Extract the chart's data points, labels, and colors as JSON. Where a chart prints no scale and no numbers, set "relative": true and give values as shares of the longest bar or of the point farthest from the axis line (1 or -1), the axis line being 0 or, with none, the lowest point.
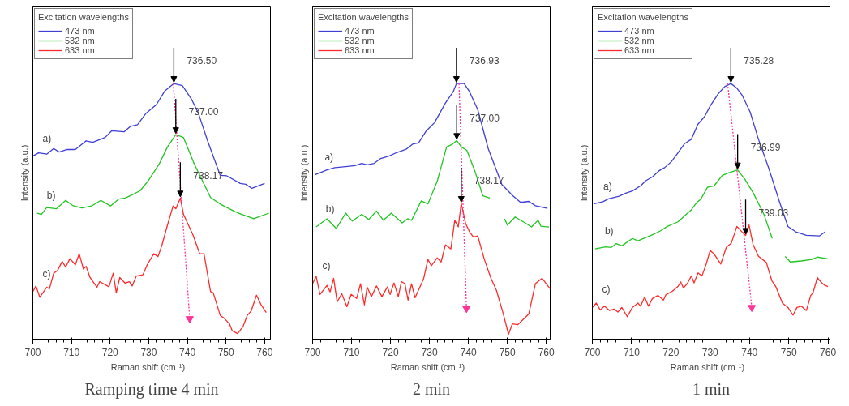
{
  "chart_data": [
    {
      "type": "line",
      "relative": true,
      "xlabel": "Raman shift    (cm⁻¹)",
      "ylabel": "Intensity (a.u.)",
      "legend_title": "Excitation wavelengths",
      "legend": "top left",
      "xlim": [
        700,
        761.5
      ],
      "xticks": [
        700,
        710,
        720,
        730,
        740,
        750,
        760
      ],
      "series": [
        {
          "name": "473 nm",
          "color": "#3f3fd6",
          "x": [
            700,
            701.5,
            703.6,
            705.4,
            706.8,
            708.9,
            711.0,
            713.8,
            715.5,
            718.7,
            720.4,
            723.6,
            725.3,
            727.1,
            729.2,
            732.0,
            734.1,
            736.5,
            738.7,
            741.1,
            742.9,
            745.3,
            748.5,
            750.2,
            753.7,
            755.1,
            756.7,
            760
          ],
          "values": [
            0.716,
            0.729,
            0.724,
            0.746,
            0.732,
            0.742,
            0.742,
            0.776,
            0.77,
            0.789,
            0.815,
            0.811,
            0.833,
            0.839,
            0.882,
            0.918,
            0.97,
            1.0,
            0.992,
            0.938,
            0.882,
            0.773,
            0.641,
            0.639,
            0.609,
            0.606,
            0.59,
            0.609
          ]
        },
        {
          "name": "532 nm",
          "color": "#22c422",
          "x": [
            701.1,
            702.2,
            703.6,
            706.1,
            708.5,
            710.3,
            712.7,
            715.2,
            717.6,
            720.1,
            722.2,
            723.9,
            725.7,
            727.8,
            729.9,
            732.7,
            734.8,
            737.0,
            739.0,
            741.8,
            746.0,
            748.8,
            752.3,
            754.1,
            757.2,
            761.1
          ],
          "values": [
            0.493,
            0.488,
            0.515,
            0.51,
            0.543,
            0.523,
            0.513,
            0.521,
            0.543,
            0.521,
            0.548,
            0.552,
            0.565,
            0.581,
            0.62,
            0.685,
            0.751,
            0.8,
            0.789,
            0.685,
            0.554,
            0.526,
            0.499,
            0.488,
            0.471,
            0.493
          ]
        },
        {
          "name": "633 nm",
          "color": "#ff2a2a",
          "x": [
            700,
            700.8,
            701.8,
            703.6,
            704.3,
            705.4,
            706.4,
            707.6,
            708.5,
            709.6,
            711.0,
            712.0,
            713.1,
            713.8,
            714.8,
            716.6,
            717.3,
            719.7,
            720.8,
            721.6,
            722.5,
            723.9,
            725.0,
            725.7,
            726.8,
            728.5,
            729.6,
            731.3,
            732.4,
            733.4,
            734.8,
            736.3,
            737.0,
            738.17,
            739.0,
            741.5,
            743.2,
            744.3,
            746.0,
            746.7,
            748.5,
            749.5,
            750.9,
            751.6,
            753.0,
            754.4,
            755.5,
            756.5,
            757.9,
            759.0,
            760.4
          ],
          "values": [
            0.186,
            0.208,
            0.164,
            0.203,
            0.197,
            0.258,
            0.269,
            0.304,
            0.282,
            0.315,
            0.291,
            0.334,
            0.274,
            0.285,
            0.241,
            0.203,
            0.225,
            0.205,
            0.258,
            0.181,
            0.241,
            0.219,
            0.225,
            0.208,
            0.247,
            0.252,
            0.291,
            0.334,
            0.323,
            0.367,
            0.444,
            0.521,
            0.51,
            0.552,
            0.488,
            0.406,
            0.334,
            0.334,
            0.186,
            0.181,
            0.093,
            0.082,
            0.06,
            0.033,
            0.022,
            0.049,
            0.093,
            0.11,
            0.172,
            0.137,
            0.104
          ]
        },
        {
          "type": "line",
          "color": "#ff3399",
          "line_style": "dotted",
          "x": [
            736.35,
            740.6
          ],
          "values": [
            1.0,
            0.08
          ]
        }
      ],
      "annotations": [
        {
          "text": "736.50",
          "x": 736.5,
          "y": 1.0
        },
        {
          "text": "737.00",
          "x": 737.0,
          "y": 0.8
        },
        {
          "text": "738.17",
          "x": 738.17,
          "y": 0.552
        },
        "a)",
        "b)",
        "c)",
        "Ramping time 4 min"
      ]
    },
    {
      "type": "line",
      "relative": true,
      "xlabel": "Raman shift    (cm⁻¹)",
      "ylabel": "Intensity (a.u.)",
      "legend_title": "Excitation wavelengths",
      "legend": "top left",
      "xlim": [
        700,
        761
      ],
      "xticks": [
        700,
        710,
        720,
        730,
        740,
        750,
        760
      ],
      "series": [
        {
          "name": "473 nm",
          "color": "#3f3fd6",
          "x": [
            700.6,
            703.7,
            705.7,
            708.5,
            710.9,
            712.6,
            714.0,
            715.8,
            717.5,
            719.6,
            721.6,
            724.0,
            725.8,
            727.2,
            729.2,
            731.3,
            734.1,
            736.1,
            736.93,
            738.9,
            740.3,
            742.4,
            745.1,
            748.6,
            751.4,
            753.4,
            755.5,
            757.2,
            760.3
          ],
          "values": [
            0.643,
            0.662,
            0.671,
            0.675,
            0.679,
            0.688,
            0.682,
            0.688,
            0.707,
            0.716,
            0.73,
            0.743,
            0.764,
            0.768,
            0.815,
            0.847,
            0.924,
            0.968,
            1.0,
            1.0,
            0.968,
            0.898,
            0.745,
            0.605,
            0.561,
            0.535,
            0.539,
            0.522,
            0.512
          ]
        },
        {
          "name": "532 nm",
          "color": "#22c422",
          "x": [
            700.9,
            703.7,
            706.1,
            708.5,
            710.2,
            712.6,
            714.4,
            716.4,
            718.2,
            720.2,
            723.0,
            724.4,
            725.4,
            727.9,
            729.6,
            732.0,
            734.4,
            736.0,
            737.0,
            738.2,
            739.6,
            741.7,
            743.7,
            745.5,
            747.4,
            749.3,
            750.0,
            752.0,
            754.1,
            756.2,
            757.9,
            758.6,
            760.7
          ],
          "values": [
            0.439,
            0.471,
            0.433,
            0.493,
            0.462,
            0.488,
            0.468,
            0.501,
            0.465,
            0.493,
            0.455,
            0.471,
            0.465,
            0.541,
            0.529,
            0.618,
            0.752,
            0.764,
            0.777,
            0.752,
            0.739,
            0.656,
            0.561,
            0.552,
            null,
            0.471,
            0.446,
            0.478,
            0.459,
            0.439,
            0.465,
            0.442,
            0.439
          ]
        },
        {
          "name": "633 nm",
          "color": "#ff2a2a",
          "x": [
            700,
            700.9,
            701.9,
            703.7,
            704.5,
            705.4,
            706.3,
            707.5,
            708.8,
            709.9,
            711.3,
            712.3,
            713.3,
            714.0,
            715.1,
            716.4,
            717.8,
            719.2,
            719.9,
            720.9,
            722.0,
            722.8,
            723.7,
            724.5,
            725.4,
            726.3,
            728.5,
            729.6,
            730.5,
            732.0,
            733.0,
            734.1,
            735.5,
            736.5,
            737.4,
            738.17,
            739.3,
            740.3,
            741.3,
            742.4,
            744.1,
            745.8,
            747.2,
            748.9,
            750.3,
            751.3,
            752.7,
            755.5,
            757.2,
            758.9,
            761.0
          ],
          "values": [
            0.217,
            0.246,
            0.175,
            0.21,
            0.185,
            0.238,
            0.146,
            0.178,
            0.127,
            0.175,
            0.159,
            0.217,
            0.134,
            0.204,
            0.166,
            0.208,
            0.166,
            0.204,
            0.175,
            0.22,
            0.166,
            0.225,
            0.217,
            0.153,
            0.217,
            0.162,
            0.236,
            0.312,
            0.287,
            0.318,
            0.302,
            0.369,
            0.353,
            0.465,
            0.439,
            0.531,
            0.452,
            0.42,
            0.399,
            0.404,
            0.312,
            0.238,
            0.191,
            0.102,
            0.019,
            0.06,
            0.057,
            0.098,
            0.217,
            0.238,
            0.197
          ]
        },
        {
          "type": "line",
          "color": "#ff3399",
          "line_style": "dotted",
          "x": [
            737.59,
            739.5
          ],
          "values": [
            1.0,
            0.12
          ]
        }
      ],
      "annotations": [
        {
          "text": "736.93",
          "x": 736.93,
          "y": 1.0
        },
        {
          "text": "737.00",
          "x": 737.0,
          "y": 0.777
        },
        {
          "text": "738.17",
          "x": 738.17,
          "y": 0.531
        },
        "a)",
        "b)",
        "c)",
        "2 min"
      ]
    },
    {
      "type": "line",
      "relative": true,
      "xlabel": "Raman shift    (cm⁻¹)",
      "ylabel": "Intensity (a.u.)",
      "legend_title": "Excitation wavelengths",
      "legend": "top left",
      "xlim": [
        700,
        760.5
      ],
      "xticks": [
        700,
        710,
        720,
        730,
        740,
        750,
        760
      ],
      "series": [
        {
          "name": "473 nm",
          "color": "#3f3fd6",
          "x": [
            700.3,
            702.7,
            704.1,
            706.8,
            708.5,
            710.2,
            712.3,
            713.6,
            715.3,
            717.0,
            718.4,
            720.1,
            721.8,
            723.5,
            725.2,
            726.9,
            728.6,
            730.0,
            732.0,
            733.7,
            735.28,
            736.8,
            738.2,
            740.2,
            742.3,
            745.0,
            747.7,
            749.8,
            751.8,
            754.5,
            757.9,
            759.3
          ],
          "values": [
            0.529,
            0.538,
            0.549,
            0.559,
            0.571,
            0.58,
            0.6,
            0.62,
            0.635,
            0.659,
            0.671,
            0.694,
            0.729,
            0.765,
            0.782,
            0.841,
            0.871,
            0.912,
            0.959,
            0.988,
            1.0,
            0.982,
            0.953,
            0.888,
            0.782,
            0.665,
            0.535,
            0.441,
            0.42,
            0.406,
            0.404,
            0.42
          ]
        },
        {
          "name": "532 nm",
          "color": "#22c422",
          "x": [
            700.7,
            703.4,
            704.8,
            706.1,
            707.5,
            710.2,
            711.6,
            715.0,
            717.4,
            719.1,
            721.8,
            723.9,
            725.2,
            726.6,
            727.6,
            729.3,
            731.0,
            733.1,
            734.8,
            736.99,
            738.9,
            741.0,
            743.7,
            745.8,
            747.5,
            749.1,
            750.4,
            753.2,
            755.9,
            757.3,
            760
          ],
          "values": [
            0.353,
            0.361,
            0.359,
            0.374,
            0.365,
            0.394,
            0.385,
            0.406,
            0.424,
            0.441,
            0.459,
            0.488,
            0.506,
            0.535,
            0.547,
            0.594,
            0.6,
            0.641,
            0.651,
            0.662,
            0.624,
            0.571,
            0.488,
            0.394,
            null,
            0.324,
            0.302,
            0.306,
            0.312,
            0.321,
            0.314
          ]
        },
        {
          "name": "633 nm",
          "color": "#ff2a2a",
          "x": [
            700,
            701.0,
            702.0,
            703.1,
            704.4,
            705.5,
            706.5,
            707.5,
            708.9,
            710.2,
            711.6,
            712.3,
            713.3,
            714.3,
            715.3,
            716.7,
            718.1,
            718.7,
            720.4,
            721.8,
            722.5,
            723.2,
            724.2,
            725.2,
            725.9,
            726.9,
            727.9,
            729.0,
            730.0,
            731.0,
            732.7,
            734.1,
            735.4,
            736.8,
            738.2,
            739.03,
            739.9,
            740.9,
            742.3,
            744.3,
            745.7,
            746.7,
            748.4,
            749.8,
            751.1,
            752.1,
            753.2,
            754.5,
            755.6,
            756.2,
            757.3,
            757.9,
            759.0,
            760
          ],
          "values": [
            0.124,
            0.141,
            0.114,
            0.129,
            0.112,
            0.118,
            0.106,
            0.124,
            0.088,
            0.124,
            0.141,
            0.129,
            0.165,
            0.129,
            0.159,
            0.171,
            0.153,
            0.173,
            0.188,
            0.206,
            0.224,
            0.2,
            0.218,
            0.247,
            0.22,
            0.259,
            0.247,
            0.294,
            0.347,
            0.333,
            0.294,
            0.359,
            0.376,
            0.441,
            0.418,
            0.406,
            0.447,
            0.371,
            0.324,
            0.3,
            0.229,
            0.206,
            0.141,
            0.124,
            0.094,
            0.124,
            0.129,
            0.112,
            0.171,
            0.182,
            0.241,
            0.229,
            0.212,
            0.206
          ]
        },
        {
          "type": "line",
          "color": "#ff3399",
          "line_style": "dotted",
          "x": [
            734.44,
            740.6
          ],
          "values": [
            1.0,
            0.124
          ]
        }
      ],
      "annotations": [
        {
          "text": "735.28",
          "x": 735.28,
          "y": 1.0
        },
        {
          "text": "736.99",
          "x": 736.99,
          "y": 0.662
        },
        {
          "text": "739.03",
          "x": 739.03,
          "y": 0.406
        },
        "a)",
        "b)",
        "c)",
        "1 min"
      ]
    }
  ]
}
